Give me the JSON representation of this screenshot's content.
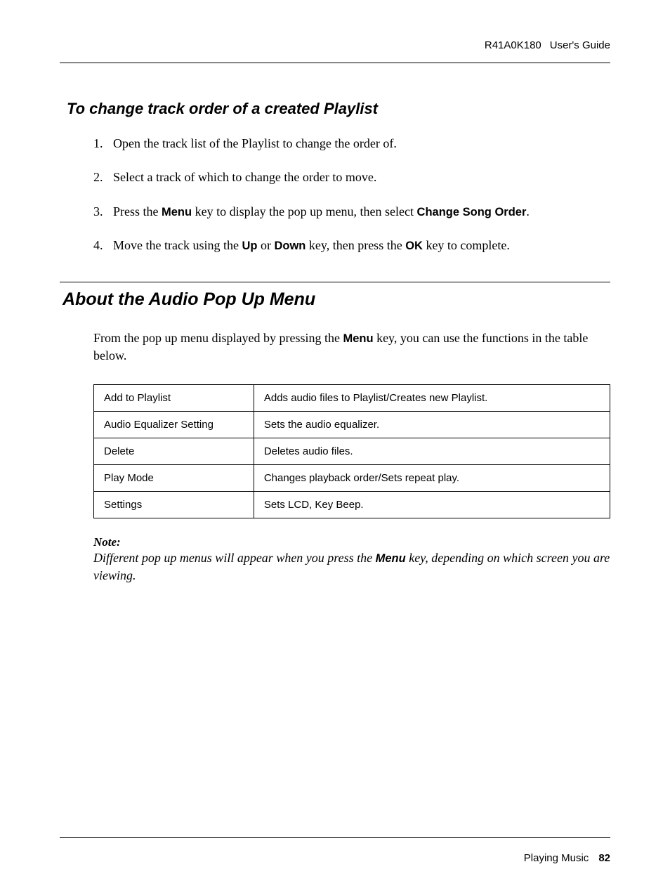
{
  "header": {
    "product": "R41A0K180",
    "doc": "User's Guide"
  },
  "section1": {
    "title": "To change track order of a created Playlist",
    "steps": [
      {
        "num": "1.",
        "text_before": "Open the track list of the Playlist to change the order of."
      },
      {
        "num": "2.",
        "text_before": "Select a track of which to change the order to move."
      },
      {
        "num": "3.",
        "text_before": "Press the ",
        "bold1": "Menu",
        "mid1": " key to display the pop up menu, then select ",
        "bold2": "Change Song Order",
        "after": "."
      },
      {
        "num": "4.",
        "text_before": "Move the track using the ",
        "bold1": "Up",
        "mid1": " or ",
        "bold2": "Down",
        "mid2": " key, then press the ",
        "bold3": "OK",
        "after": " key to complete."
      }
    ]
  },
  "section2": {
    "title": "About the Audio Pop Up Menu",
    "intro_before": "From the pop up menu displayed by pressing the ",
    "intro_bold": "Menu",
    "intro_after": " key, you can use the functions in the table below.",
    "table": {
      "rows": [
        [
          "Add to Playlist",
          "Adds audio files to Playlist/Creates new Playlist."
        ],
        [
          "Audio Equalizer Setting",
          "Sets the audio equalizer."
        ],
        [
          "Delete",
          "Deletes audio files."
        ],
        [
          "Play Mode",
          "Changes playback order/Sets repeat play."
        ],
        [
          "Settings",
          "Sets LCD, Key Beep."
        ]
      ]
    },
    "note_label": "Note:",
    "note_before": "Different pop up menus will appear when you press the ",
    "note_bold": "Menu",
    "note_after": " key, depending on which screen you are viewing."
  },
  "footer": {
    "chapter": "Playing Music",
    "page": "82"
  }
}
